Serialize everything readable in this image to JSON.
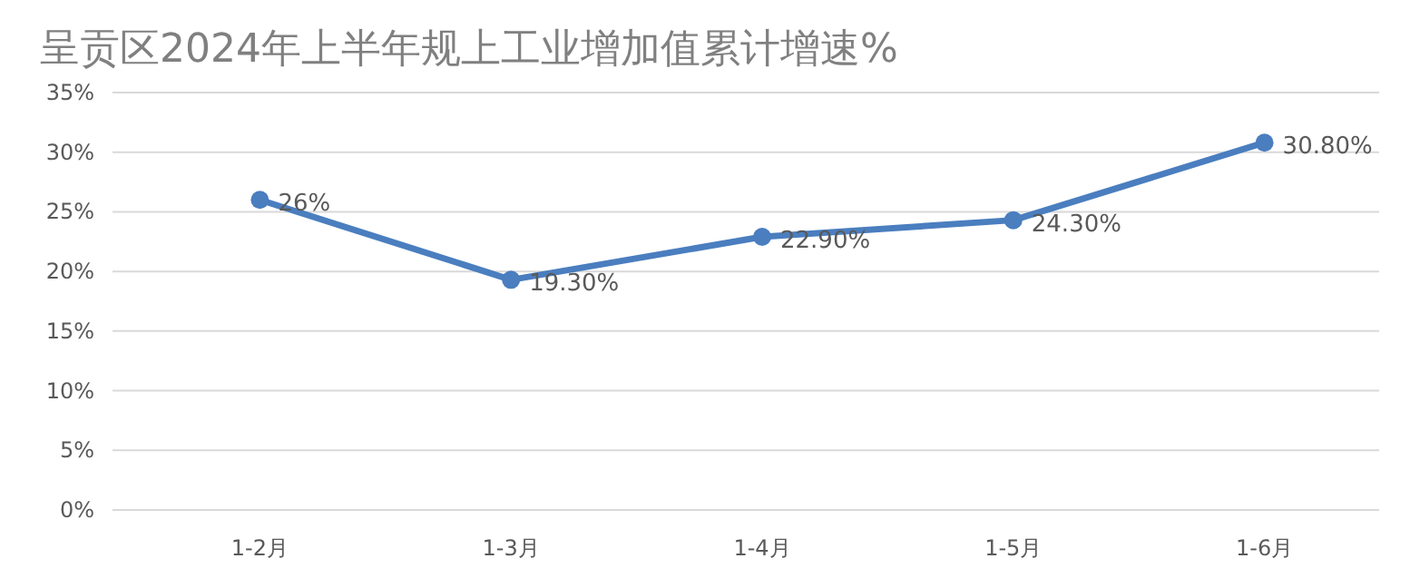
{
  "chart_data": {
    "type": "line",
    "title": "呈贡区2024年上半年规上工业增加值累计增速%",
    "categories": [
      "1-2月",
      "1-3月",
      "1-4月",
      "1-5月",
      "1-6月"
    ],
    "values": [
      26,
      19.3,
      22.9,
      24.3,
      30.8
    ],
    "value_labels": [
      "26%",
      "19.30%",
      "22.90%",
      "24.30%",
      "30.80%"
    ],
    "color": "#4a7ebf",
    "ylim": [
      0,
      35
    ],
    "yticks": [
      {
        "value": 0,
        "label": "0%"
      },
      {
        "value": 5,
        "label": "5%"
      },
      {
        "value": 10,
        "label": "10%"
      },
      {
        "value": 15,
        "label": "15%"
      },
      {
        "value": 20,
        "label": "20%"
      },
      {
        "value": 25,
        "label": "25%"
      },
      {
        "value": 30,
        "label": "30%"
      },
      {
        "value": 35,
        "label": "35%"
      }
    ],
    "grid": "y",
    "marker": "circle",
    "line_style": "solid"
  }
}
